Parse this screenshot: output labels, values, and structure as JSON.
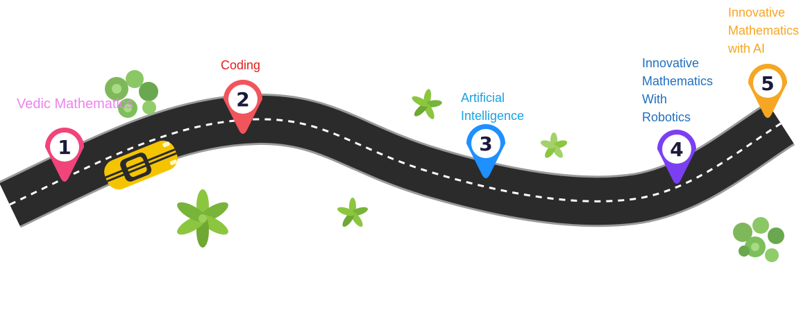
{
  "roadmap": {
    "milestones": [
      {
        "number": "1",
        "label": "Vedic Mathematics",
        "color": "#f0447a",
        "label_color": "#ee82ee"
      },
      {
        "number": "2",
        "label": "Coding",
        "color": "#f2545b",
        "label_color": "#e02020"
      },
      {
        "number": "3",
        "label": "Artificial\nIntelligence",
        "color": "#1e90ff",
        "label_color": "#1ba1e2"
      },
      {
        "number": "4",
        "label": "Innovative\nMathematics\nWith\nRobotics",
        "color": "#7b3ff2",
        "label_color": "#1f6fbf"
      },
      {
        "number": "5",
        "label": "Innovative\nMathematics\nwith AI",
        "color": "#f5a623",
        "label_color": "#f5a623"
      }
    ],
    "road_color": "#2b2b2b",
    "car_color": "#f5c400",
    "decor_icons": [
      "bush-icon",
      "palm-plant-icon",
      "car-icon"
    ]
  }
}
